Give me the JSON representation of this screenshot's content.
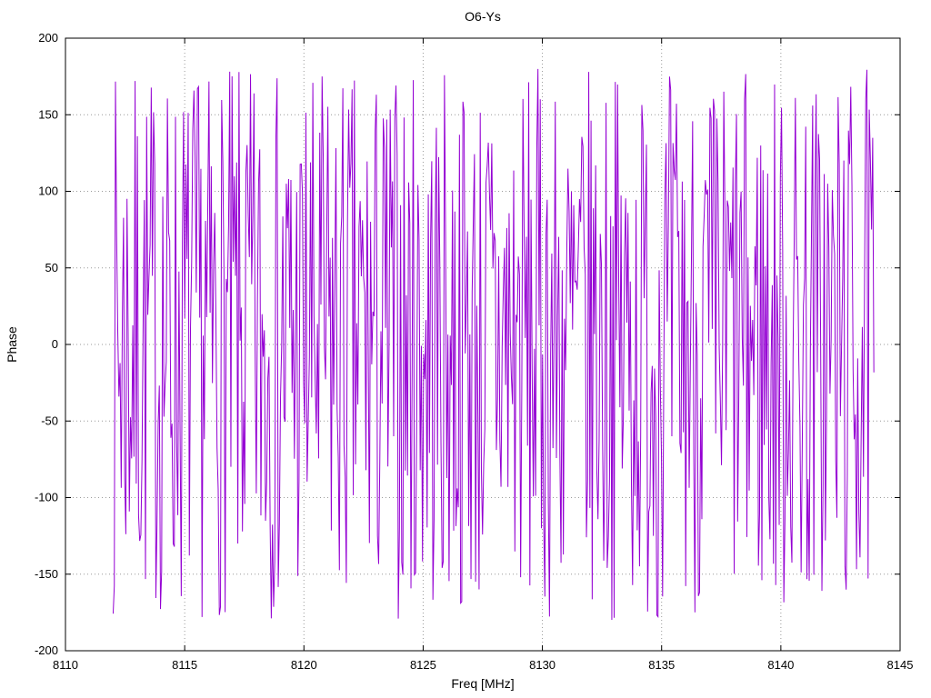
{
  "chart_data": {
    "type": "line",
    "title": "O6-Ys",
    "xlabel": "Freq [MHz]",
    "ylabel": "Phase",
    "xlim": [
      8110,
      8145
    ],
    "ylim": [
      -200,
      200
    ],
    "x_ticks": [
      8110,
      8115,
      8120,
      8125,
      8130,
      8135,
      8140,
      8145
    ],
    "y_ticks": [
      -200,
      -150,
      -100,
      -50,
      0,
      50,
      100,
      150,
      200
    ],
    "grid": true,
    "grid_style": "dotted",
    "grid_color": "#9a9a9a",
    "frame_color": "#000000",
    "background_color": "#ffffff",
    "text_color": "#000000",
    "legend": "none",
    "series": [
      {
        "name": "O6-Ys phase",
        "color": "#9400d3",
        "x_start": 8112.0,
        "x_end": 8143.9,
        "n_points": 660,
        "y_min": -180,
        "y_max": 180,
        "seed": 7,
        "description": "Wrapped phase vs frequency appearing as dense uniform random noise between -180 and +180 degrees, drawn as a connected line; values fill the band 8112-8143.9 MHz with peaks repeatedly touching +/-180"
      }
    ]
  }
}
